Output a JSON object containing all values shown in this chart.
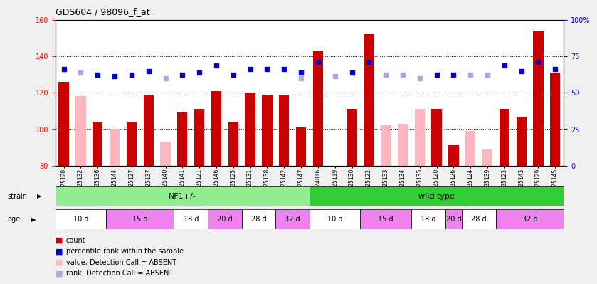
{
  "title": "GDS604 / 98096_f_at",
  "samples": [
    "GSM25128",
    "GSM25132",
    "GSM25136",
    "GSM25144",
    "GSM25127",
    "GSM25137",
    "GSM25140",
    "GSM25141",
    "GSM25121",
    "GSM25146",
    "GSM25125",
    "GSM25131",
    "GSM25138",
    "GSM25142",
    "GSM25147",
    "GSM24816",
    "GSM25119",
    "GSM25130",
    "GSM25122",
    "GSM25133",
    "GSM25134",
    "GSM25135",
    "GSM25120",
    "GSM25126",
    "GSM25124",
    "GSM25139",
    "GSM25123",
    "GSM25143",
    "GSM25129",
    "GSM25145"
  ],
  "count_values": [
    126,
    0,
    104,
    0,
    104,
    119,
    0,
    109,
    111,
    121,
    104,
    120,
    119,
    119,
    101,
    143,
    0,
    111,
    152,
    0,
    0,
    0,
    111,
    91,
    0,
    0,
    111,
    107,
    154,
    131
  ],
  "absent_count_values": [
    0,
    118,
    0,
    100,
    0,
    0,
    93,
    0,
    0,
    0,
    0,
    0,
    0,
    0,
    0,
    0,
    0,
    0,
    0,
    102,
    103,
    111,
    0,
    0,
    99,
    89,
    0,
    0,
    0,
    0
  ],
  "percentile_rank": [
    133,
    0,
    130,
    129,
    130,
    132,
    0,
    130,
    131,
    135,
    130,
    133,
    133,
    133,
    131,
    137,
    0,
    131,
    137,
    0,
    0,
    0,
    130,
    130,
    0,
    0,
    135,
    132,
    137,
    133
  ],
  "absent_rank": [
    0,
    131,
    0,
    0,
    0,
    0,
    128,
    0,
    0,
    0,
    0,
    0,
    0,
    0,
    128,
    0,
    129,
    0,
    0,
    130,
    130,
    128,
    0,
    0,
    130,
    130,
    0,
    0,
    0,
    0
  ],
  "strain_groups": [
    {
      "label": "NF1+/-",
      "start": 0,
      "end": 15,
      "color": "#90EE90"
    },
    {
      "label": "wild type",
      "start": 15,
      "end": 30,
      "color": "#32CD32"
    }
  ],
  "age_groups": [
    {
      "label": "10 d",
      "start": 0,
      "end": 3,
      "color": "#FFFFFF"
    },
    {
      "label": "15 d",
      "start": 3,
      "end": 7,
      "color": "#EE82EE"
    },
    {
      "label": "18 d",
      "start": 7,
      "end": 9,
      "color": "#FFFFFF"
    },
    {
      "label": "20 d",
      "start": 9,
      "end": 11,
      "color": "#EE82EE"
    },
    {
      "label": "28 d",
      "start": 11,
      "end": 13,
      "color": "#FFFFFF"
    },
    {
      "label": "32 d",
      "start": 13,
      "end": 15,
      "color": "#EE82EE"
    },
    {
      "label": "10 d",
      "start": 15,
      "end": 18,
      "color": "#FFFFFF"
    },
    {
      "label": "15 d",
      "start": 18,
      "end": 21,
      "color": "#EE82EE"
    },
    {
      "label": "18 d",
      "start": 21,
      "end": 23,
      "color": "#FFFFFF"
    },
    {
      "label": "20 d",
      "start": 23,
      "end": 24,
      "color": "#EE82EE"
    },
    {
      "label": "28 d",
      "start": 24,
      "end": 26,
      "color": "#FFFFFF"
    },
    {
      "label": "32 d",
      "start": 26,
      "end": 30,
      "color": "#EE82EE"
    }
  ],
  "ylim_left": [
    80,
    160
  ],
  "ylim_right": [
    0,
    100
  ],
  "yticks_left": [
    80,
    100,
    120,
    140,
    160
  ],
  "yticks_right": [
    0,
    25,
    50,
    75,
    100
  ],
  "bar_color": "#CC0000",
  "absent_bar_color": "#FFB6C1",
  "rank_color": "#0000CC",
  "absent_rank_color": "#AAAADD",
  "background_color": "#F0F0F0",
  "plot_bg_color": "#FFFFFF",
  "legend": [
    {
      "label": "count",
      "color": "#CC0000"
    },
    {
      "label": "percentile rank within the sample",
      "color": "#0000CC"
    },
    {
      "label": "value, Detection Call = ABSENT",
      "color": "#FFB6C1"
    },
    {
      "label": "rank, Detection Call = ABSENT",
      "color": "#AAAADD"
    }
  ]
}
